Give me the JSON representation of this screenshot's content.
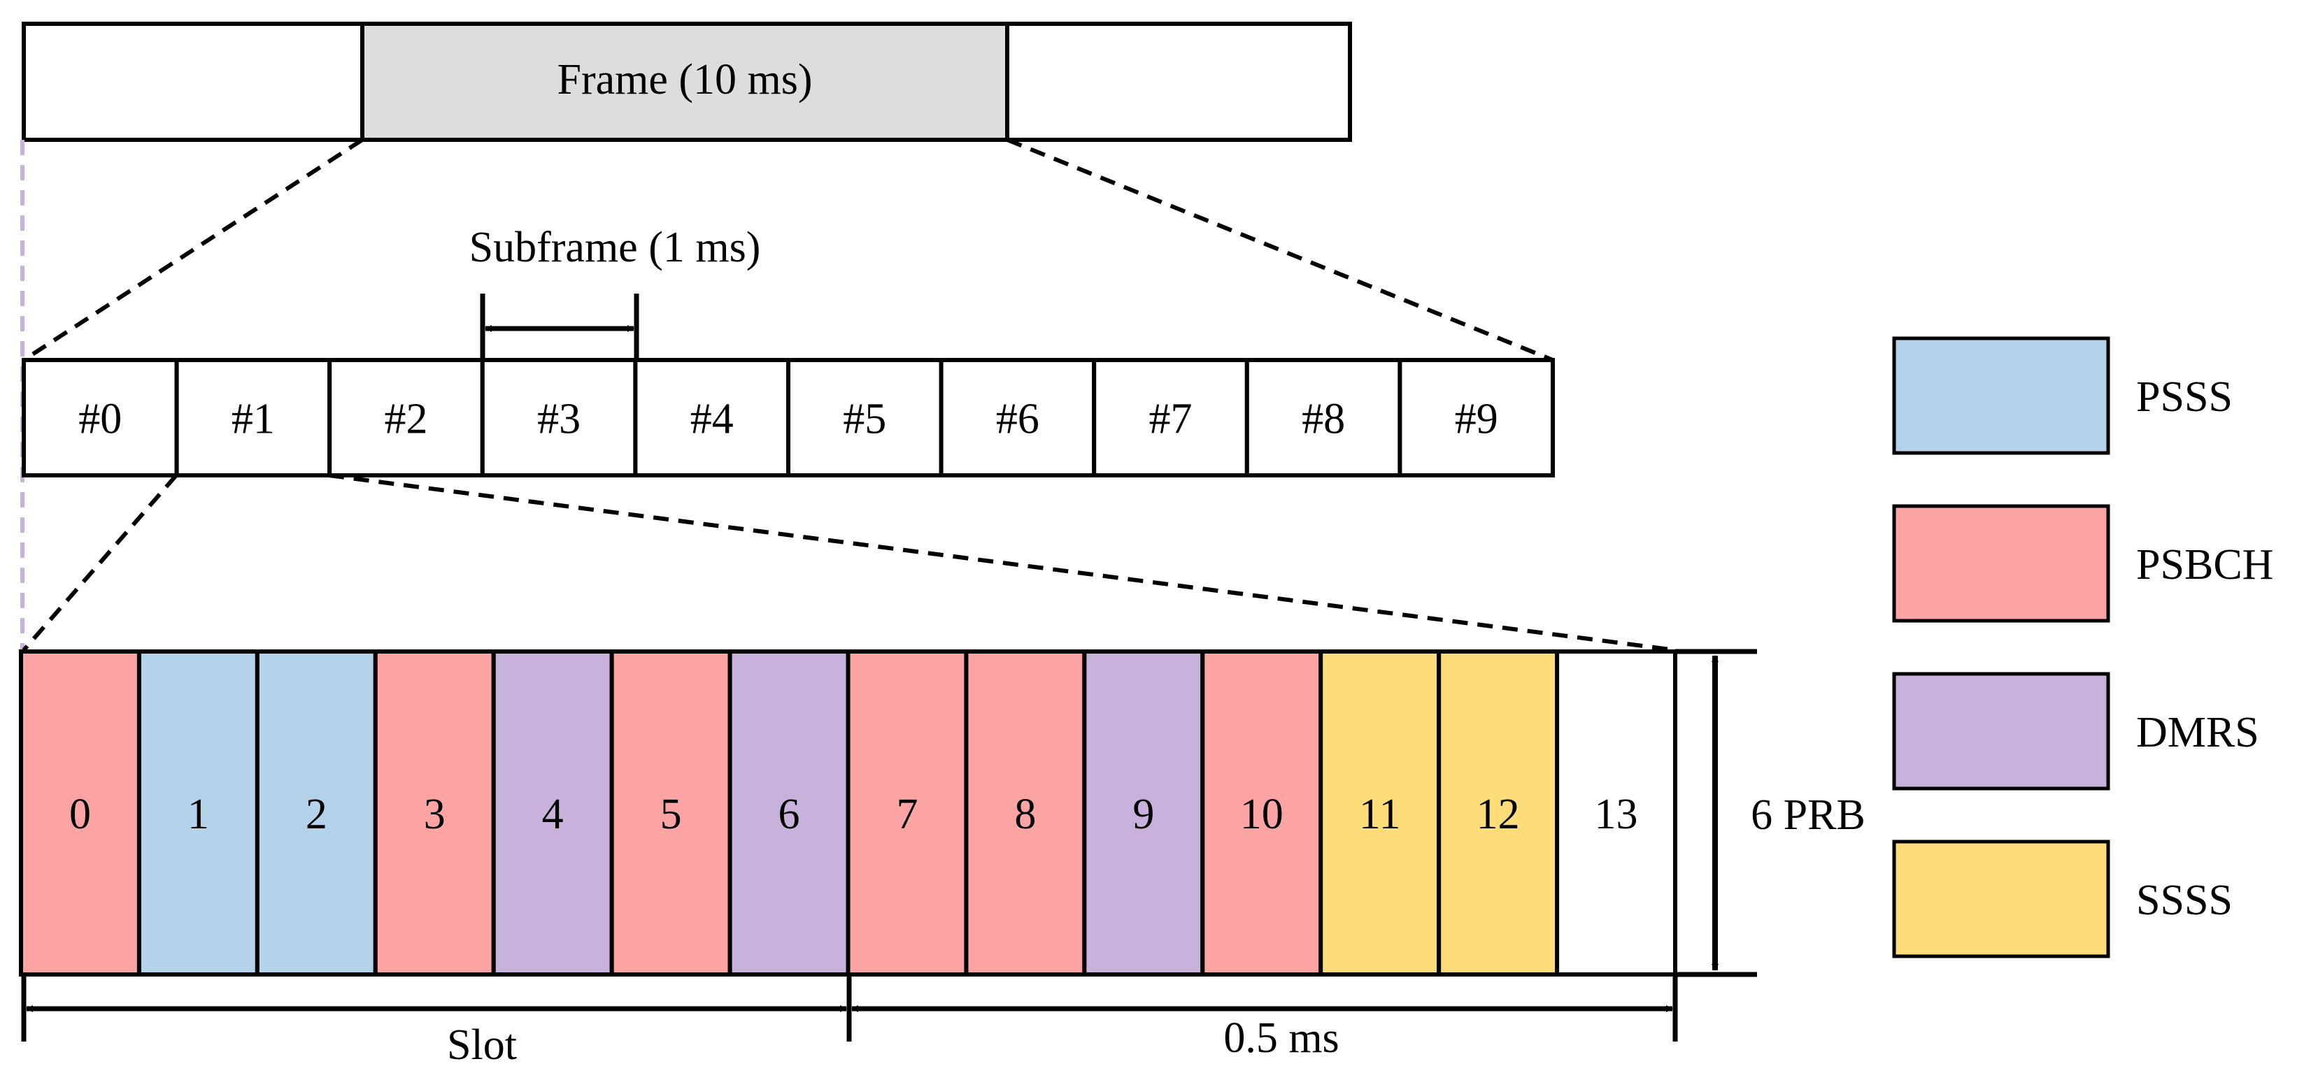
{
  "frame": {
    "label": "Frame (10 ms)"
  },
  "subframe": {
    "label": "Subframe (1 ms)",
    "items": [
      "#0",
      "#1",
      "#2",
      "#3",
      "#4",
      "#5",
      "#6",
      "#7",
      "#8",
      "#9"
    ]
  },
  "symbols": {
    "items": [
      {
        "label": "0",
        "type": "PSBCH"
      },
      {
        "label": "1",
        "type": "PSSS"
      },
      {
        "label": "2",
        "type": "PSSS"
      },
      {
        "label": "3",
        "type": "PSBCH"
      },
      {
        "label": "4",
        "type": "DMRS"
      },
      {
        "label": "5",
        "type": "PSBCH"
      },
      {
        "label": "6",
        "type": "DMRS"
      },
      {
        "label": "7",
        "type": "PSBCH"
      },
      {
        "label": "8",
        "type": "PSBCH"
      },
      {
        "label": "9",
        "type": "DMRS"
      },
      {
        "label": "10",
        "type": "PSBCH"
      },
      {
        "label": "11",
        "type": "SSSS"
      },
      {
        "label": "12",
        "type": "SSSS"
      },
      {
        "label": "13",
        "type": "empty"
      }
    ],
    "height_label": "6 PRB",
    "slot_label": "Slot",
    "half_label": "0.5 ms"
  },
  "legend": {
    "items": [
      {
        "label": "PSSS",
        "type": "PSSS"
      },
      {
        "label": "PSBCH",
        "type": "PSBCH"
      },
      {
        "label": "DMRS",
        "type": "DMRS"
      },
      {
        "label": "SSSS",
        "type": "SSSS"
      }
    ]
  },
  "colors": {
    "PSSS": "#b4d3ea",
    "PSBCH": "#fca4a4",
    "DMRS": "#c8b1da",
    "SSSS": "#fddc79",
    "empty": "#ffffff",
    "frame_fill": "#dddddd",
    "guide": "#c8b1da"
  }
}
